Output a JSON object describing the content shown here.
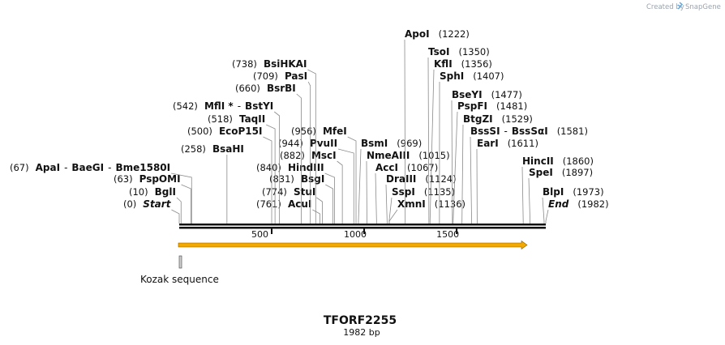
{
  "header": {
    "created_by": "Created by",
    "brand": "SnapGene"
  },
  "sequence": {
    "name": "TFORF2255",
    "length_label": "1982 bp",
    "length": 1982
  },
  "axis": {
    "ticks": [
      "500",
      "1000",
      "1500"
    ],
    "tick_values": [
      500,
      1000,
      1500
    ]
  },
  "features": [
    {
      "name": "ORF arrow",
      "label": "",
      "start": 0,
      "end": 1982,
      "color": "#f2a900"
    },
    {
      "name": "Kozak sequence",
      "label": "Kozak sequence",
      "start": 0,
      "end": 10,
      "color": "#888888"
    }
  ],
  "sites": [
    {
      "id": "start",
      "pos": "(0)",
      "value": 0,
      "names": [
        "Start"
      ],
      "italic": true
    },
    {
      "id": "bgli",
      "pos": "(10)",
      "value": 10,
      "names": [
        "BglI"
      ]
    },
    {
      "id": "psp0mi",
      "pos": "(63)",
      "value": 63,
      "names": [
        "PspOMI"
      ]
    },
    {
      "id": "apai",
      "pos": "(67)",
      "value": 67,
      "names": [
        "ApaI",
        "BaeGI",
        "Bme1580I"
      ]
    },
    {
      "id": "bsahi",
      "pos": "(258)",
      "value": 258,
      "names": [
        "BsaHI"
      ]
    },
    {
      "id": "ecop15i",
      "pos": "(500)",
      "value": 500,
      "names": [
        "EcoP15I"
      ]
    },
    {
      "id": "taqii",
      "pos": "(518)",
      "value": 518,
      "names": [
        "TaqII"
      ]
    },
    {
      "id": "mfli",
      "pos": "(542)",
      "value": 542,
      "names": [
        "MflI *",
        "BstYI"
      ]
    },
    {
      "id": "bsrbi",
      "pos": "(660)",
      "value": 660,
      "names": [
        "BsrBI"
      ]
    },
    {
      "id": "pasi",
      "pos": "(709)",
      "value": 709,
      "names": [
        "PasI"
      ]
    },
    {
      "id": "bsihkai",
      "pos": "(738)",
      "value": 738,
      "names": [
        "BsiHKAI"
      ]
    },
    {
      "id": "acui",
      "pos": "(761)",
      "value": 761,
      "names": [
        "AcuI"
      ]
    },
    {
      "id": "stui",
      "pos": "(774)",
      "value": 774,
      "names": [
        "StuI"
      ]
    },
    {
      "id": "bsgi",
      "pos": "(831)",
      "value": 831,
      "names": [
        "BsgI"
      ]
    },
    {
      "id": "hindiii",
      "pos": "(840)",
      "value": 840,
      "names": [
        "HindIII"
      ]
    },
    {
      "id": "msci",
      "pos": "(882)",
      "value": 882,
      "names": [
        "MscI"
      ]
    },
    {
      "id": "pvuii",
      "pos": "(944)",
      "value": 944,
      "names": [
        "PvuII"
      ]
    },
    {
      "id": "mfei",
      "pos": "(956)",
      "value": 956,
      "names": [
        "MfeI"
      ]
    },
    {
      "id": "bsmi",
      "pos": "(969)",
      "value": 969,
      "names": [
        "BsmI"
      ]
    },
    {
      "id": "nmeaiii",
      "pos": "(1015)",
      "value": 1015,
      "names": [
        "NmeAIII"
      ]
    },
    {
      "id": "acci",
      "pos": "(1067)",
      "value": 1067,
      "names": [
        "AccI"
      ]
    },
    {
      "id": "draiii",
      "pos": "(1124)",
      "value": 1124,
      "names": [
        "DraIII"
      ]
    },
    {
      "id": "sspi",
      "pos": "(1135)",
      "value": 1135,
      "names": [
        "SspI"
      ]
    },
    {
      "id": "xmni",
      "pos": "(1136)",
      "value": 1136,
      "names": [
        "XmnI"
      ]
    },
    {
      "id": "apoi",
      "pos": "(1222)",
      "value": 1222,
      "names": [
        "ApoI"
      ]
    },
    {
      "id": "tsoi",
      "pos": "(1350)",
      "value": 1350,
      "names": [
        "TsoI"
      ]
    },
    {
      "id": "kfli",
      "pos": "(1356)",
      "value": 1356,
      "names": [
        "KflI"
      ]
    },
    {
      "id": "sphi",
      "pos": "(1407)",
      "value": 1407,
      "names": [
        "SphI"
      ]
    },
    {
      "id": "bseyi",
      "pos": "(1477)",
      "value": 1477,
      "names": [
        "BseYI"
      ]
    },
    {
      "id": "pspfi",
      "pos": "(1481)",
      "value": 1481,
      "names": [
        "PspFI"
      ]
    },
    {
      "id": "btgzi",
      "pos": "(1529)",
      "value": 1529,
      "names": [
        "BtgZI"
      ]
    },
    {
      "id": "bsssi",
      "pos": "(1581)",
      "value": 1581,
      "names": [
        "BssSI",
        "BssSαI"
      ]
    },
    {
      "id": "eari",
      "pos": "(1611)",
      "value": 1611,
      "names": [
        "EarI"
      ]
    },
    {
      "id": "hincii",
      "pos": "(1860)",
      "value": 1860,
      "names": [
        "HincII"
      ]
    },
    {
      "id": "spei",
      "pos": "(1897)",
      "value": 1897,
      "names": [
        "SpeI"
      ]
    },
    {
      "id": "blpi",
      "pos": "(1973)",
      "value": 1973,
      "names": [
        "BlpI"
      ]
    },
    {
      "id": "end",
      "pos": "(1982)",
      "value": 1982,
      "names": [
        "End"
      ],
      "italic": true
    }
  ]
}
